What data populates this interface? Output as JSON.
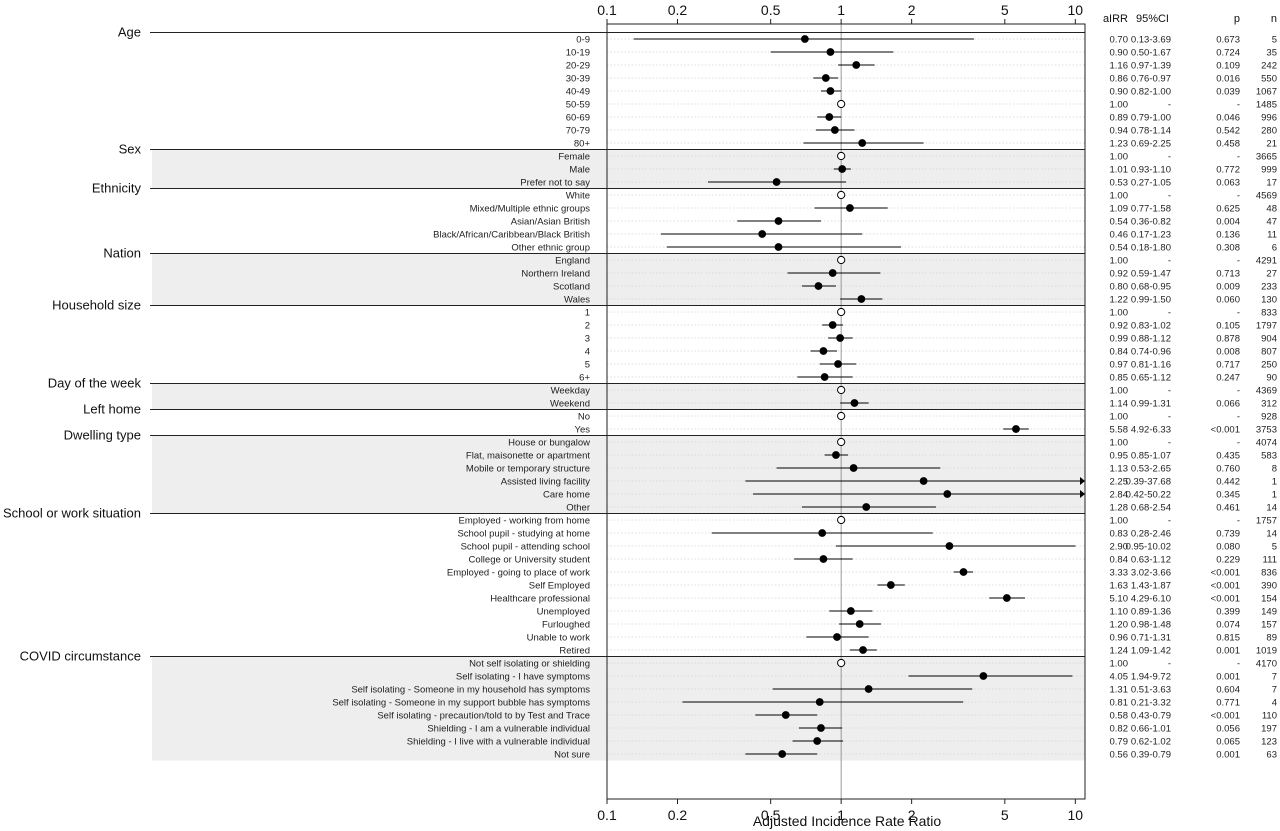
{
  "chart_data": {
    "type": "forest",
    "xlabel": "Adjusted Incidence Rate Ratio",
    "xscale": "log",
    "xlim": [
      0.1,
      11
    ],
    "xticks": [
      0.1,
      0.2,
      0.5,
      1,
      2,
      5,
      10
    ],
    "xtick_labels": [
      "0.1",
      "0.2",
      "0.5",
      "1",
      "2",
      "5",
      "10"
    ],
    "reference_value": 1,
    "column_headers": [
      "aIRR",
      "95%CI",
      "p",
      "n"
    ],
    "groups": [
      {
        "name": "Age",
        "shaded": false,
        "rows": [
          {
            "label": "0-9",
            "airr": 0.7,
            "lo": 0.13,
            "hi": 3.69,
            "airr_text": "0.70",
            "ci_text": "0.13-3.69",
            "p_text": "0.673",
            "n_text": "5"
          },
          {
            "label": "10-19",
            "airr": 0.9,
            "lo": 0.5,
            "hi": 1.67,
            "airr_text": "0.90",
            "ci_text": "0.50-1.67",
            "p_text": "0.724",
            "n_text": "35"
          },
          {
            "label": "20-29",
            "airr": 1.16,
            "lo": 0.97,
            "hi": 1.39,
            "airr_text": "1.16",
            "ci_text": "0.97-1.39",
            "p_text": "0.109",
            "n_text": "242"
          },
          {
            "label": "30-39",
            "airr": 0.86,
            "lo": 0.76,
            "hi": 0.97,
            "airr_text": "0.86",
            "ci_text": "0.76-0.97",
            "p_text": "0.016",
            "n_text": "550"
          },
          {
            "label": "40-49",
            "airr": 0.9,
            "lo": 0.82,
            "hi": 1.0,
            "airr_text": "0.90",
            "ci_text": "0.82-1.00",
            "p_text": "0.039",
            "n_text": "1067"
          },
          {
            "label": "50-59",
            "airr": 1.0,
            "ref": true,
            "airr_text": "1.00",
            "ci_text": "-",
            "p_text": "-",
            "n_text": "1485"
          },
          {
            "label": "60-69",
            "airr": 0.89,
            "lo": 0.79,
            "hi": 1.0,
            "airr_text": "0.89",
            "ci_text": "0.79-1.00",
            "p_text": "0.046",
            "n_text": "996"
          },
          {
            "label": "70-79",
            "airr": 0.94,
            "lo": 0.78,
            "hi": 1.14,
            "airr_text": "0.94",
            "ci_text": "0.78-1.14",
            "p_text": "0.542",
            "n_text": "280"
          },
          {
            "label": "80+",
            "airr": 1.23,
            "lo": 0.69,
            "hi": 2.25,
            "airr_text": "1.23",
            "ci_text": "0.69-2.25",
            "p_text": "0.458",
            "n_text": "21"
          }
        ]
      },
      {
        "name": "Sex",
        "shaded": true,
        "rows": [
          {
            "label": "Female",
            "airr": 1.0,
            "ref": true,
            "airr_text": "1.00",
            "ci_text": "-",
            "p_text": "-",
            "n_text": "3665"
          },
          {
            "label": "Male",
            "airr": 1.01,
            "lo": 0.93,
            "hi": 1.1,
            "airr_text": "1.01",
            "ci_text": "0.93-1.10",
            "p_text": "0.772",
            "n_text": "999"
          },
          {
            "label": "Prefer not to say",
            "airr": 0.53,
            "lo": 0.27,
            "hi": 1.05,
            "airr_text": "0.53",
            "ci_text": "0.27-1.05",
            "p_text": "0.063",
            "n_text": "17"
          }
        ]
      },
      {
        "name": "Ethnicity",
        "shaded": false,
        "rows": [
          {
            "label": "White",
            "airr": 1.0,
            "ref": true,
            "airr_text": "1.00",
            "ci_text": "-",
            "p_text": "-",
            "n_text": "4569"
          },
          {
            "label": "Mixed/Multiple ethnic groups",
            "airr": 1.09,
            "lo": 0.77,
            "hi": 1.58,
            "airr_text": "1.09",
            "ci_text": "0.77-1.58",
            "p_text": "0.625",
            "n_text": "48"
          },
          {
            "label": "Asian/Asian British",
            "airr": 0.54,
            "lo": 0.36,
            "hi": 0.82,
            "airr_text": "0.54",
            "ci_text": "0.36-0.82",
            "p_text": "0.004",
            "n_text": "47"
          },
          {
            "label": "Black/African/Caribbean/Black British",
            "airr": 0.46,
            "lo": 0.17,
            "hi": 1.23,
            "airr_text": "0.46",
            "ci_text": "0.17-1.23",
            "p_text": "0.136",
            "n_text": "11"
          },
          {
            "label": "Other ethnic group",
            "airr": 0.54,
            "lo": 0.18,
            "hi": 1.8,
            "airr_text": "0.54",
            "ci_text": "0.18-1.80",
            "p_text": "0.308",
            "n_text": "6"
          }
        ]
      },
      {
        "name": "Nation",
        "shaded": true,
        "rows": [
          {
            "label": "England",
            "airr": 1.0,
            "ref": true,
            "airr_text": "1.00",
            "ci_text": "-",
            "p_text": "-",
            "n_text": "4291"
          },
          {
            "label": "Northern Ireland",
            "airr": 0.92,
            "lo": 0.59,
            "hi": 1.47,
            "airr_text": "0.92",
            "ci_text": "0.59-1.47",
            "p_text": "0.713",
            "n_text": "27"
          },
          {
            "label": "Scotland",
            "airr": 0.8,
            "lo": 0.68,
            "hi": 0.95,
            "airr_text": "0.80",
            "ci_text": "0.68-0.95",
            "p_text": "0.009",
            "n_text": "233"
          },
          {
            "label": "Wales",
            "airr": 1.22,
            "lo": 0.99,
            "hi": 1.5,
            "airr_text": "1.22",
            "ci_text": "0.99-1.50",
            "p_text": "0.060",
            "n_text": "130"
          }
        ]
      },
      {
        "name": "Household size",
        "shaded": false,
        "rows": [
          {
            "label": "1",
            "airr": 1.0,
            "ref": true,
            "airr_text": "1.00",
            "ci_text": "-",
            "p_text": "-",
            "n_text": "833"
          },
          {
            "label": "2",
            "airr": 0.92,
            "lo": 0.83,
            "hi": 1.02,
            "airr_text": "0.92",
            "ci_text": "0.83-1.02",
            "p_text": "0.105",
            "n_text": "1797"
          },
          {
            "label": "3",
            "airr": 0.99,
            "lo": 0.88,
            "hi": 1.12,
            "airr_text": "0.99",
            "ci_text": "0.88-1.12",
            "p_text": "0.878",
            "n_text": "904"
          },
          {
            "label": "4",
            "airr": 0.84,
            "lo": 0.74,
            "hi": 0.96,
            "airr_text": "0.84",
            "ci_text": "0.74-0.96",
            "p_text": "0.008",
            "n_text": "807"
          },
          {
            "label": "5",
            "airr": 0.97,
            "lo": 0.81,
            "hi": 1.16,
            "airr_text": "0.97",
            "ci_text": "0.81-1.16",
            "p_text": "0.717",
            "n_text": "250"
          },
          {
            "label": "6+",
            "airr": 0.85,
            "lo": 0.65,
            "hi": 1.12,
            "airr_text": "0.85",
            "ci_text": "0.65-1.12",
            "p_text": "0.247",
            "n_text": "90"
          }
        ]
      },
      {
        "name": "Day of the week",
        "shaded": true,
        "rows": [
          {
            "label": "Weekday",
            "airr": 1.0,
            "ref": true,
            "airr_text": "1.00",
            "ci_text": "-",
            "p_text": "-",
            "n_text": "4369"
          },
          {
            "label": "Weekend",
            "airr": 1.14,
            "lo": 0.99,
            "hi": 1.31,
            "airr_text": "1.14",
            "ci_text": "0.99-1.31",
            "p_text": "0.066",
            "n_text": "312"
          }
        ]
      },
      {
        "name": "Left home",
        "shaded": false,
        "rows": [
          {
            "label": "No",
            "airr": 1.0,
            "ref": true,
            "airr_text": "1.00",
            "ci_text": "-",
            "p_text": "-",
            "n_text": "928"
          },
          {
            "label": "Yes",
            "airr": 5.58,
            "lo": 4.92,
            "hi": 6.33,
            "airr_text": "5.58",
            "ci_text": "4.92-6.33",
            "p_text": "<0.001",
            "n_text": "3753"
          }
        ]
      },
      {
        "name": "Dwelling type",
        "shaded": true,
        "rows": [
          {
            "label": "House or bungalow",
            "airr": 1.0,
            "ref": true,
            "airr_text": "1.00",
            "ci_text": "-",
            "p_text": "-",
            "n_text": "4074"
          },
          {
            "label": "Flat, maisonette or apartment",
            "airr": 0.95,
            "lo": 0.85,
            "hi": 1.07,
            "airr_text": "0.95",
            "ci_text": "0.85-1.07",
            "p_text": "0.435",
            "n_text": "583"
          },
          {
            "label": "Mobile or temporary structure",
            "airr": 1.13,
            "lo": 0.53,
            "hi": 2.65,
            "airr_text": "1.13",
            "ci_text": "0.53-2.65",
            "p_text": "0.760",
            "n_text": "8"
          },
          {
            "label": "Assisted living facility",
            "airr": 2.25,
            "lo": 0.39,
            "hi": 37.68,
            "airr_text": "2.25",
            "ci_text": "0.39-37.68",
            "p_text": "0.442",
            "n_text": "1"
          },
          {
            "label": "Care home",
            "airr": 2.84,
            "lo": 0.42,
            "hi": 50.22,
            "airr_text": "2.84",
            "ci_text": "0.42-50.22",
            "p_text": "0.345",
            "n_text": "1"
          },
          {
            "label": "Other",
            "airr": 1.28,
            "lo": 0.68,
            "hi": 2.54,
            "airr_text": "1.28",
            "ci_text": "0.68-2.54",
            "p_text": "0.461",
            "n_text": "14"
          }
        ]
      },
      {
        "name": "School or work situation",
        "shaded": false,
        "rows": [
          {
            "label": "Employed - working from home",
            "airr": 1.0,
            "ref": true,
            "airr_text": "1.00",
            "ci_text": "-",
            "p_text": "-",
            "n_text": "1757"
          },
          {
            "label": "School pupil - studying at home",
            "airr": 0.83,
            "lo": 0.28,
            "hi": 2.46,
            "airr_text": "0.83",
            "ci_text": "0.28-2.46",
            "p_text": "0.739",
            "n_text": "14"
          },
          {
            "label": "School pupil - attending school",
            "airr": 2.9,
            "lo": 0.95,
            "hi": 10.02,
            "airr_text": "2.90",
            "ci_text": "0.95-10.02",
            "p_text": "0.080",
            "n_text": "5"
          },
          {
            "label": "College or University student",
            "airr": 0.84,
            "lo": 0.63,
            "hi": 1.12,
            "airr_text": "0.84",
            "ci_text": "0.63-1.12",
            "p_text": "0.229",
            "n_text": "111"
          },
          {
            "label": "Employed - going to place of work",
            "airr": 3.33,
            "lo": 3.02,
            "hi": 3.66,
            "airr_text": "3.33",
            "ci_text": "3.02-3.66",
            "p_text": "<0.001",
            "n_text": "836"
          },
          {
            "label": "Self Employed",
            "airr": 1.63,
            "lo": 1.43,
            "hi": 1.87,
            "airr_text": "1.63",
            "ci_text": "1.43-1.87",
            "p_text": "<0.001",
            "n_text": "390"
          },
          {
            "label": "Healthcare professional",
            "airr": 5.1,
            "lo": 4.29,
            "hi": 6.1,
            "airr_text": "5.10",
            "ci_text": "4.29-6.10",
            "p_text": "<0.001",
            "n_text": "154"
          },
          {
            "label": "Unemployed",
            "airr": 1.1,
            "lo": 0.89,
            "hi": 1.36,
            "airr_text": "1.10",
            "ci_text": "0.89-1.36",
            "p_text": "0.399",
            "n_text": "149"
          },
          {
            "label": "Furloughed",
            "airr": 1.2,
            "lo": 0.98,
            "hi": 1.48,
            "airr_text": "1.20",
            "ci_text": "0.98-1.48",
            "p_text": "0.074",
            "n_text": "157"
          },
          {
            "label": "Unable to work",
            "airr": 0.96,
            "lo": 0.71,
            "hi": 1.31,
            "airr_text": "0.96",
            "ci_text": "0.71-1.31",
            "p_text": "0.815",
            "n_text": "89"
          },
          {
            "label": "Retired",
            "airr": 1.24,
            "lo": 1.09,
            "hi": 1.42,
            "airr_text": "1.24",
            "ci_text": "1.09-1.42",
            "p_text": "0.001",
            "n_text": "1019"
          }
        ]
      },
      {
        "name": "COVID circumstance",
        "shaded": true,
        "rows": [
          {
            "label": "Not self isolating or shielding",
            "airr": 1.0,
            "ref": true,
            "airr_text": "1.00",
            "ci_text": "-",
            "p_text": "-",
            "n_text": "4170"
          },
          {
            "label": "Self isolating - I have symptoms",
            "airr": 4.05,
            "lo": 1.94,
            "hi": 9.72,
            "airr_text": "4.05",
            "ci_text": "1.94-9.72",
            "p_text": "0.001",
            "n_text": "7"
          },
          {
            "label": "Self isolating - Someone in my household has symptoms",
            "airr": 1.31,
            "lo": 0.51,
            "hi": 3.63,
            "airr_text": "1.31",
            "ci_text": "0.51-3.63",
            "p_text": "0.604",
            "n_text": "7"
          },
          {
            "label": "Self isolating - Someone in my support bubble has symptoms",
            "airr": 0.81,
            "lo": 0.21,
            "hi": 3.32,
            "airr_text": "0.81",
            "ci_text": "0.21-3.32",
            "p_text": "0.771",
            "n_text": "4"
          },
          {
            "label": "Self isolating - precaution/told to by Test and Trace",
            "airr": 0.58,
            "lo": 0.43,
            "hi": 0.79,
            "airr_text": "0.58",
            "ci_text": "0.43-0.79",
            "p_text": "<0.001",
            "n_text": "110"
          },
          {
            "label": "Shielding - I am a vulnerable individual",
            "airr": 0.82,
            "lo": 0.66,
            "hi": 1.01,
            "airr_text": "0.82",
            "ci_text": "0.66-1.01",
            "p_text": "0.056",
            "n_text": "197"
          },
          {
            "label": "Shielding - I live with a vulnerable individual",
            "airr": 0.79,
            "lo": 0.62,
            "hi": 1.02,
            "airr_text": "0.79",
            "ci_text": "0.62-1.02",
            "p_text": "0.065",
            "n_text": "123"
          },
          {
            "label": "Not sure",
            "airr": 0.56,
            "lo": 0.39,
            "hi": 0.79,
            "airr_text": "0.56",
            "ci_text": "0.39-0.79",
            "p_text": "0.001",
            "n_text": "63"
          }
        ]
      }
    ],
    "colors": {
      "point": "#000000",
      "reference_point_fill": "#ffffff",
      "shaded_band": "#eeeeee",
      "reference_line": "#999999",
      "grid": "#d4d4d4"
    }
  }
}
